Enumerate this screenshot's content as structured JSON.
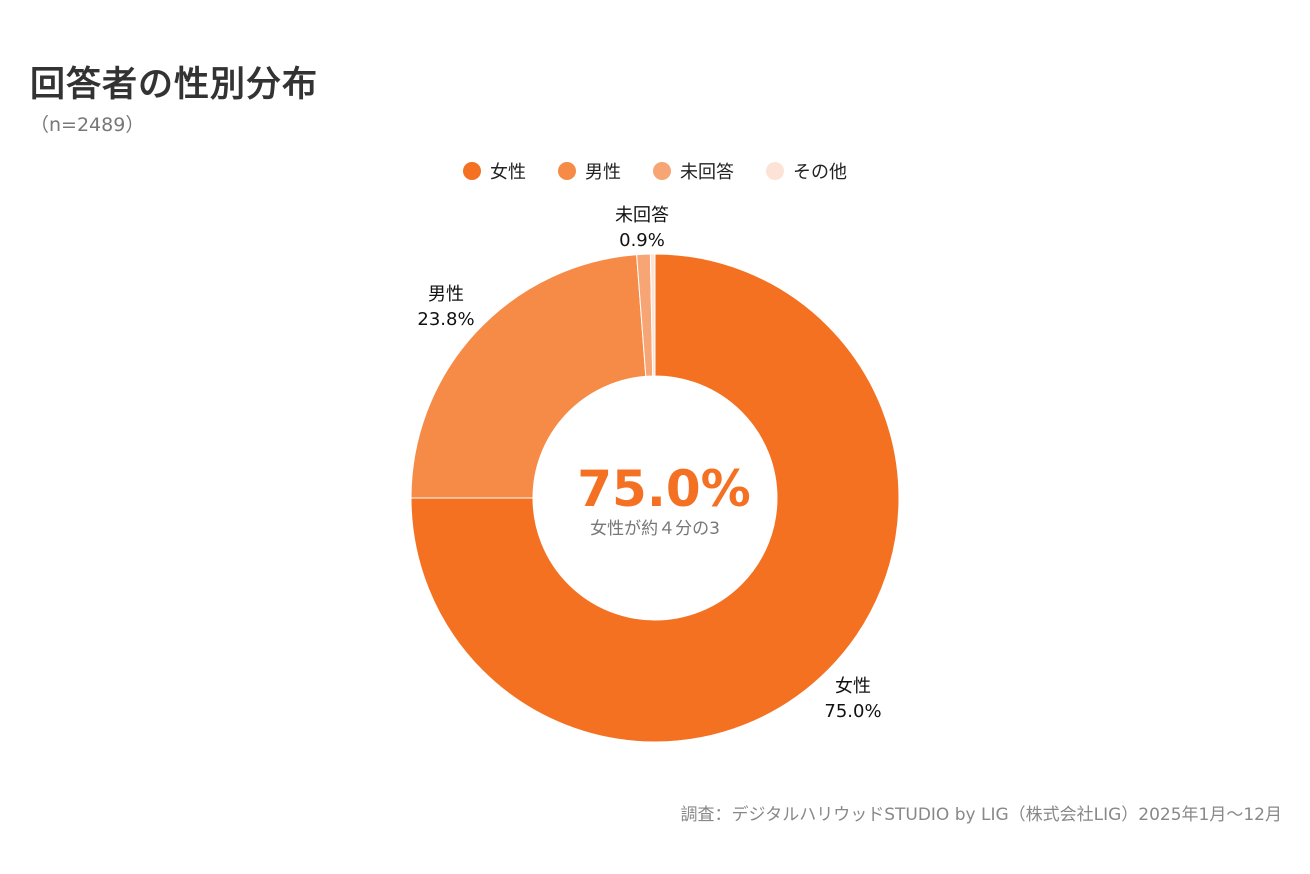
{
  "header": {
    "title": "回答者の性別分布",
    "subtitle": "（n=2489）"
  },
  "center": {
    "value": "75.0%",
    "caption": "女性が約４分の3",
    "value_color": "#f47124"
  },
  "footer": {
    "source": "調査：デジタルハリウッドSTUDIO by LIG（株式会社LIG）2025年1月〜12月"
  },
  "chart_data": {
    "type": "pie",
    "donut": true,
    "legend_position": "top-center",
    "slices": [
      {
        "label": "女性",
        "value": 75.0,
        "display": "75.0%",
        "color": "#f47121"
      },
      {
        "label": "男性",
        "value": 23.8,
        "display": "23.8%",
        "color": "#f68a47"
      },
      {
        "label": "未回答",
        "value": 0.9,
        "display": "0.9%",
        "color": "#f7a574"
      },
      {
        "label": "その他",
        "value": 0.3,
        "display": "",
        "color": "#fce3d6"
      }
    ]
  }
}
